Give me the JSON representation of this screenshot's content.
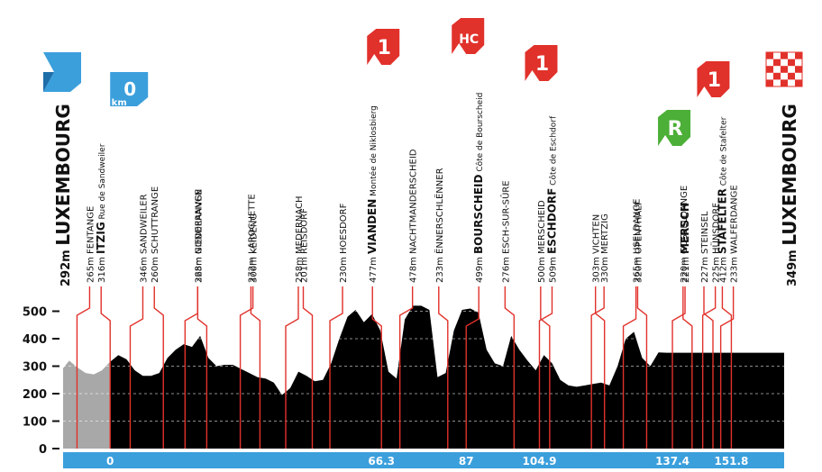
{
  "chart_data": {
    "type": "area",
    "title": "",
    "xlabel": "",
    "ylabel": "",
    "ylim": [
      0,
      550
    ],
    "y_ticks": [
      0,
      100,
      200,
      300,
      400,
      500
    ],
    "x_ticks": [
      "0",
      "66.3",
      "87",
      "104.9",
      "137.4",
      "151.8"
    ],
    "x_tick_km": [
      0,
      66.3,
      87,
      104.9,
      137.4,
      151.8
    ],
    "xlim": [
      -11.5,
      164.7
    ],
    "neutral_end_km": 0,
    "grid": "horizontal dashed lines",
    "series": [
      {
        "x": [
          -11.5,
          -10,
          -8,
          -6,
          -4,
          -2,
          0,
          2,
          4,
          6,
          8,
          10,
          12,
          14,
          16,
          18,
          20,
          22,
          24,
          26,
          28,
          30,
          32,
          34,
          36,
          38,
          40,
          42,
          44,
          46,
          48,
          50,
          52,
          54,
          56,
          58,
          60,
          62,
          64,
          66,
          68,
          70,
          72,
          74,
          76,
          78,
          80,
          82,
          84,
          86,
          88,
          90,
          92,
          94,
          96,
          98,
          100,
          102,
          104,
          106,
          108,
          110,
          112,
          114,
          116,
          118,
          120,
          122,
          124,
          126,
          128,
          130,
          132,
          134,
          136,
          138,
          140,
          142,
          144,
          146,
          148,
          150,
          152,
          154,
          156,
          158,
          160,
          162,
          164,
          164.7
        ],
        "y": [
          292,
          320,
          295,
          275,
          270,
          285,
          316,
          340,
          325,
          285,
          265,
          265,
          275,
          330,
          360,
          380,
          370,
          410,
          330,
          300,
          305,
          305,
          290,
          275,
          260,
          255,
          240,
          195,
          220,
          280,
          265,
          245,
          250,
          310,
          400,
          480,
          505,
          460,
          490,
          430,
          280,
          255,
          470,
          520,
          520,
          505,
          260,
          275,
          430,
          505,
          510,
          495,
          360,
          310,
          300,
          410,
          360,
          320,
          285,
          340,
          310,
          250,
          230,
          225,
          230,
          235,
          240,
          230,
          300,
          400,
          425,
          330,
          300,
          350,
          349,
          349,
          349,
          349,
          349,
          349,
          349,
          349,
          349,
          349,
          349,
          349,
          349,
          349,
          349,
          349
        ]
      }
    ],
    "start": {
      "altitude": "292m",
      "name": "LUXEMBOURG",
      "km": 0
    },
    "finish": {
      "altitude": "349m",
      "name": "LUXEMBOURG"
    },
    "start_flag_label": "0",
    "start_flag_unit": "km",
    "climb_badges": [
      {
        "label": "1",
        "km": 66.3,
        "category": "1"
      },
      {
        "label": "HC",
        "km": 87,
        "category": "HC"
      },
      {
        "label": "1",
        "km": 104.9,
        "category": "1"
      },
      {
        "label": "R",
        "km": 137.4,
        "category": "feed"
      },
      {
        "label": "1",
        "km": 151.8,
        "category": "1"
      }
    ],
    "places": [
      {
        "altitude": "265m",
        "name": "FENTANGE",
        "km": -8.1,
        "bold": false,
        "extra": ""
      },
      {
        "altitude": "316m",
        "name": "ITZIG",
        "km": 0,
        "bold": true,
        "extra": "Rue de Sandweiler"
      },
      {
        "altitude": "346m",
        "name": "SANDWEILER",
        "km": 4.9,
        "bold": false,
        "extra": ""
      },
      {
        "altitude": "260m",
        "name": "SCHUTTRANGE",
        "km": 13,
        "bold": false,
        "extra": ""
      },
      {
        "altitude": "265m",
        "name": "NIEDERANVEN",
        "km": 18.3,
        "bold": false,
        "extra": ""
      },
      {
        "altitude": "328m",
        "name": "GONDERANGE",
        "km": 23.6,
        "bold": false,
        "extra": ""
      },
      {
        "altitude": "300m",
        "name": "KÉIDENG",
        "km": 31.8,
        "bold": false,
        "extra": ""
      },
      {
        "altitude": "272m",
        "name": "LAROCHETTE",
        "km": 36.6,
        "bold": false,
        "extra": ""
      },
      {
        "altitude": "258m",
        "name": "MEDERNACH",
        "km": 42.9,
        "bold": false,
        "extra": ""
      },
      {
        "altitude": "201m",
        "name": "REISDORF",
        "km": 49.4,
        "bold": false,
        "extra": ""
      },
      {
        "altitude": "230m",
        "name": "HOESDORF",
        "km": 53.7,
        "bold": false,
        "extra": ""
      },
      {
        "altitude": "477m",
        "name": "VIANDEN",
        "km": 66.3,
        "bold": true,
        "extra": "Montée de Niklosbierg"
      },
      {
        "altitude": "478m",
        "name": "NACHTMANDERSCHEID",
        "km": 70.8,
        "bold": false,
        "extra": ""
      },
      {
        "altitude": "233m",
        "name": "ËNNERSCHLËNNER",
        "km": 82.5,
        "bold": false,
        "extra": ""
      },
      {
        "altitude": "499m",
        "name": "BOURSCHEID",
        "km": 87,
        "bold": true,
        "extra": "Côte de Bourscheid"
      },
      {
        "altitude": "276m",
        "name": "ESCH-SUR-SÛRE",
        "km": 98.7,
        "bold": false,
        "extra": ""
      },
      {
        "altitude": "509m",
        "name": "ESCHDORF",
        "km": 104.9,
        "bold": true,
        "extra": "Côte de Eschdorf"
      },
      {
        "altitude": "500m",
        "name": "MERSCHEID",
        "km": 107.4,
        "bold": false,
        "extra": ""
      },
      {
        "altitude": "330m",
        "name": "MERTZIG",
        "km": 117.6,
        "bold": false,
        "extra": ""
      },
      {
        "altitude": "303m",
        "name": "VICHTEN",
        "km": 120.8,
        "bold": false,
        "extra": ""
      },
      {
        "altitude": "265m",
        "name": "USELDANGE",
        "km": 125.4,
        "bold": false,
        "extra": ""
      },
      {
        "altitude": "320m",
        "name": "OPENTHALT",
        "km": 131.1,
        "bold": false,
        "extra": ""
      },
      {
        "altitude": "221m",
        "name": "MERSCH",
        "km": 137.4,
        "bold": true,
        "extra": ""
      },
      {
        "altitude": "220m",
        "name": "GOSSELDANGE",
        "km": 142.2,
        "bold": false,
        "extra": ""
      },
      {
        "altitude": "225m",
        "name": "HÜNSDORF",
        "km": 144.8,
        "bold": false,
        "extra": ""
      },
      {
        "altitude": "227m",
        "name": "STEINSEL",
        "km": 147.3,
        "bold": false,
        "extra": ""
      },
      {
        "altitude": "233m",
        "name": "WALFERDANGE",
        "km": 149.2,
        "bold": false,
        "extra": ""
      },
      {
        "altitude": "412m",
        "name": "STAFELTER",
        "km": 151.8,
        "bold": true,
        "extra": "Côte de Stafelter"
      }
    ],
    "colors": {
      "profile": "#000000",
      "neutral": "#a8a8a8",
      "marker": "#e1312b",
      "axis_bar": "#3b9fdc",
      "start_flag": "#3b9fdc",
      "climb_badge": "#e1312b",
      "feed_badge": "#4caf37"
    }
  }
}
